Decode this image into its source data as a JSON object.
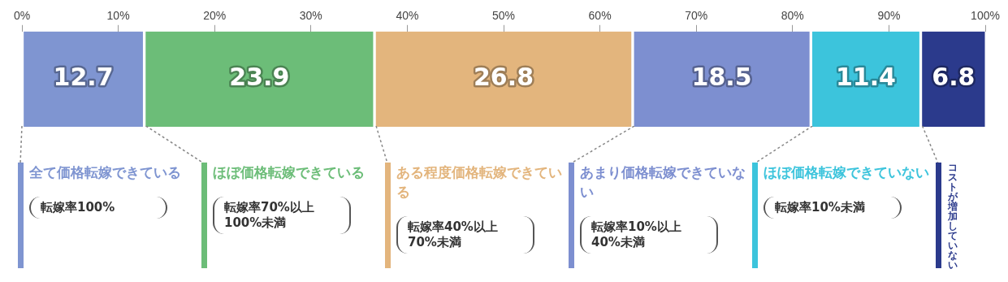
{
  "chart_data": {
    "type": "bar",
    "orientation": "horizontal",
    "stacked": true,
    "categories": [
      null
    ],
    "series": [
      {
        "name": "全て価格転嫁できている",
        "color": "#7f95d1",
        "values": [
          12.7
        ]
      },
      {
        "name": "ほぼ価格転嫁できている",
        "color": "#6cbd78",
        "values": [
          23.9
        ]
      },
      {
        "name": "ある程度価格転嫁できている",
        "color": "#e3b57d",
        "values": [
          26.8
        ]
      },
      {
        "name": "あまり価格転嫁できていない",
        "color": "#7d8fd0",
        "values": [
          18.5
        ]
      },
      {
        "name": "ほぼ価格転嫁できていない",
        "color": "#3cc4dc",
        "values": [
          11.4
        ]
      },
      {
        "name": "コストが増加していない",
        "color": "#2b3a8c",
        "values": [
          6.8
        ]
      }
    ],
    "xlim": [
      0,
      100
    ],
    "xticks": [
      {
        "value": 0,
        "label": "0%"
      },
      {
        "value": 10,
        "label": "10%"
      },
      {
        "value": 20,
        "label": "20%"
      },
      {
        "value": 30,
        "label": "30%"
      },
      {
        "value": 40,
        "label": "40%"
      },
      {
        "value": 50,
        "label": "50%"
      },
      {
        "value": 60,
        "label": "60%"
      },
      {
        "value": 70,
        "label": "70%"
      },
      {
        "value": 80,
        "label": "80%"
      },
      {
        "value": 90,
        "label": "90%"
      },
      {
        "value": 100,
        "label": "100%"
      }
    ],
    "data_labels": true,
    "legend": "bottom",
    "grid": false,
    "annotations": [
      "転嫁率100%",
      "転嫁率70%以上100%未満",
      "転嫁率40%以上70%未満",
      "転嫁率10%以上40%未満",
      "転嫁率10%未満"
    ]
  }
}
